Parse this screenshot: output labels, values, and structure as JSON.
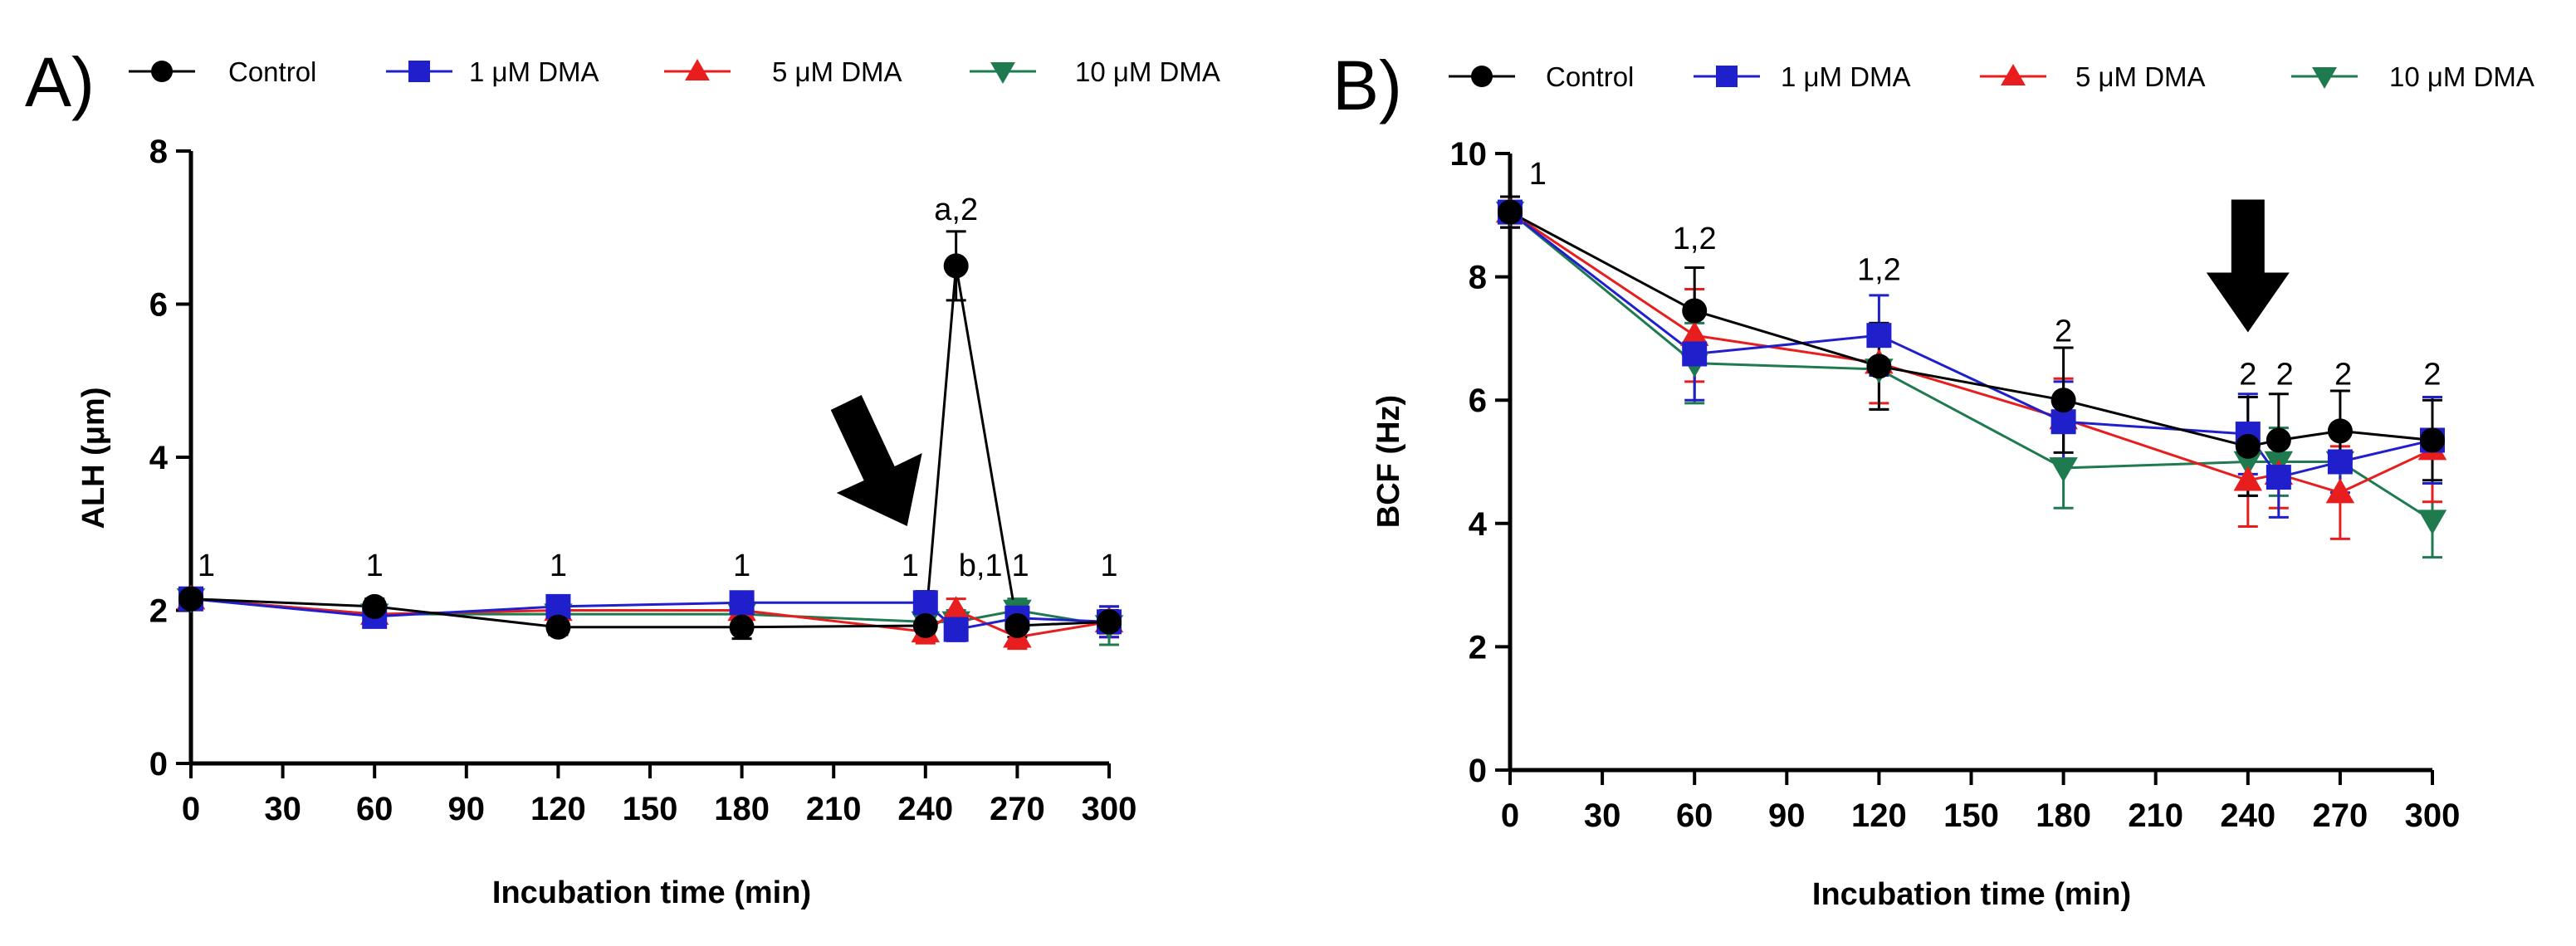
{
  "panels": [
    {
      "letter": "A)",
      "legend": [
        "Control",
        "1 μM DMA",
        "5 μM DMA",
        "10 μM DMA"
      ],
      "chart_data": {
        "type": "line",
        "xlabel": "Incubation time (min)",
        "ylabel": "ALH (μm)",
        "xlim": [
          0,
          300
        ],
        "ylim": [
          0,
          8
        ],
        "xticks": [
          0,
          30,
          60,
          90,
          120,
          150,
          180,
          210,
          240,
          270,
          300
        ],
        "yticks": [
          0,
          2,
          4,
          6,
          8
        ],
        "grid": false,
        "x": [
          0,
          60,
          120,
          180,
          240,
          250,
          270,
          300
        ],
        "series": [
          {
            "name": "Control",
            "color": "#000000",
            "marker": "circle",
            "values": [
              2.15,
              2.05,
              1.78,
              1.78,
              1.8,
              6.5,
              1.8,
              1.85
            ],
            "errors": [
              0.1,
              0.1,
              0.1,
              0.15,
              0.15,
              0.45,
              0.15,
              0.15
            ]
          },
          {
            "name": "1 μM DMA",
            "color": "#1f1fcc",
            "marker": "square",
            "values": [
              2.15,
              1.92,
              2.05,
              2.1,
              2.1,
              1.75,
              1.9,
              1.85
            ],
            "errors": [
              0.1,
              0.1,
              0.1,
              0.1,
              0.15,
              0.15,
              0.15,
              0.2
            ]
          },
          {
            "name": "5 μM DMA",
            "color": "#e81e1e",
            "marker": "triangle-up",
            "values": [
              2.15,
              1.95,
              2.0,
              2.0,
              1.72,
              2.0,
              1.65,
              1.85
            ],
            "errors": [
              0.1,
              0.1,
              0.1,
              0.1,
              0.15,
              0.15,
              0.15,
              0.2
            ]
          },
          {
            "name": "10 μM DMA",
            "color": "#1f7a4f",
            "marker": "triangle-down",
            "values": [
              2.15,
              1.95,
              1.95,
              1.95,
              1.85,
              1.85,
              2.0,
              1.8
            ],
            "errors": [
              0.1,
              0.1,
              0.1,
              0.1,
              0.15,
              0.15,
              0.15,
              0.25
            ]
          }
        ],
        "annotations": [
          {
            "text": "1",
            "x": 5,
            "y": 2.45
          },
          {
            "text": "1",
            "x": 60,
            "y": 2.45
          },
          {
            "text": "1",
            "x": 120,
            "y": 2.45
          },
          {
            "text": "1",
            "x": 180,
            "y": 2.45
          },
          {
            "text": "1",
            "x": 235,
            "y": 2.45
          },
          {
            "text": "a,2",
            "x": 250,
            "y": 7.1
          },
          {
            "text": "b,1",
            "x": 258,
            "y": 2.45
          },
          {
            "text": "1",
            "x": 271,
            "y": 2.45
          },
          {
            "text": "1",
            "x": 300,
            "y": 2.45
          }
        ],
        "arrow_at": {
          "x": 234,
          "y": 3.1
        }
      }
    },
    {
      "letter": "B)",
      "legend": [
        "Control",
        "1 μM DMA",
        "5 μM DMA",
        "10 μM DMA"
      ],
      "chart_data": {
        "type": "line",
        "xlabel": "Incubation time (min)",
        "ylabel": "BCF (Hz)",
        "xlim": [
          0,
          300
        ],
        "ylim": [
          0,
          10
        ],
        "xticks": [
          0,
          30,
          60,
          90,
          120,
          150,
          180,
          210,
          240,
          270,
          300
        ],
        "yticks": [
          0,
          2,
          4,
          6,
          8,
          10
        ],
        "grid": false,
        "x": [
          0,
          60,
          120,
          180,
          240,
          250,
          270,
          300
        ],
        "series": [
          {
            "name": "Control",
            "color": "#000000",
            "marker": "circle",
            "values": [
              9.05,
              7.45,
              6.55,
              6.0,
              5.25,
              5.35,
              5.5,
              5.35
            ],
            "errors": [
              0.25,
              0.7,
              0.7,
              0.85,
              0.8,
              0.75,
              0.65,
              0.65
            ]
          },
          {
            "name": "1 μM DMA",
            "color": "#1f1fcc",
            "marker": "square",
            "values": [
              9.05,
              6.75,
              7.05,
              5.65,
              5.45,
              4.75,
              5.0,
              5.35
            ],
            "errors": [
              0.25,
              0.75,
              0.65,
              0.65,
              0.65,
              0.65,
              0.5,
              0.7
            ]
          },
          {
            "name": "5 μM DMA",
            "color": "#e81e1e",
            "marker": "triangle-up",
            "values": [
              9.05,
              7.05,
              6.6,
              5.7,
              4.7,
              4.8,
              4.5,
              5.2
            ],
            "errors": [
              0.25,
              0.75,
              0.65,
              0.65,
              0.75,
              0.55,
              0.75,
              0.85
            ]
          },
          {
            "name": "10 μM DMA",
            "color": "#1f7a4f",
            "marker": "triangle-down",
            "values": [
              9.05,
              6.6,
              6.5,
              4.9,
              5.0,
              5.0,
              5.0,
              4.05
            ],
            "errors": [
              0.25,
              0.65,
              0.65,
              0.65,
              0.55,
              0.55,
              0.6,
              0.6
            ]
          }
        ],
        "annotations": [
          {
            "text": "1",
            "x": 9,
            "y": 9.5
          },
          {
            "text": "1,2",
            "x": 60,
            "y": 8.45
          },
          {
            "text": "1,2",
            "x": 120,
            "y": 7.95
          },
          {
            "text": "2",
            "x": 180,
            "y": 6.95
          },
          {
            "text": "2",
            "x": 240,
            "y": 6.25
          },
          {
            "text": "2",
            "x": 252,
            "y": 6.25
          },
          {
            "text": "2",
            "x": 271,
            "y": 6.25
          },
          {
            "text": "2",
            "x": 300,
            "y": 6.25
          }
        ],
        "arrow_at": {
          "x": 240,
          "y": 7.1
        }
      }
    }
  ]
}
